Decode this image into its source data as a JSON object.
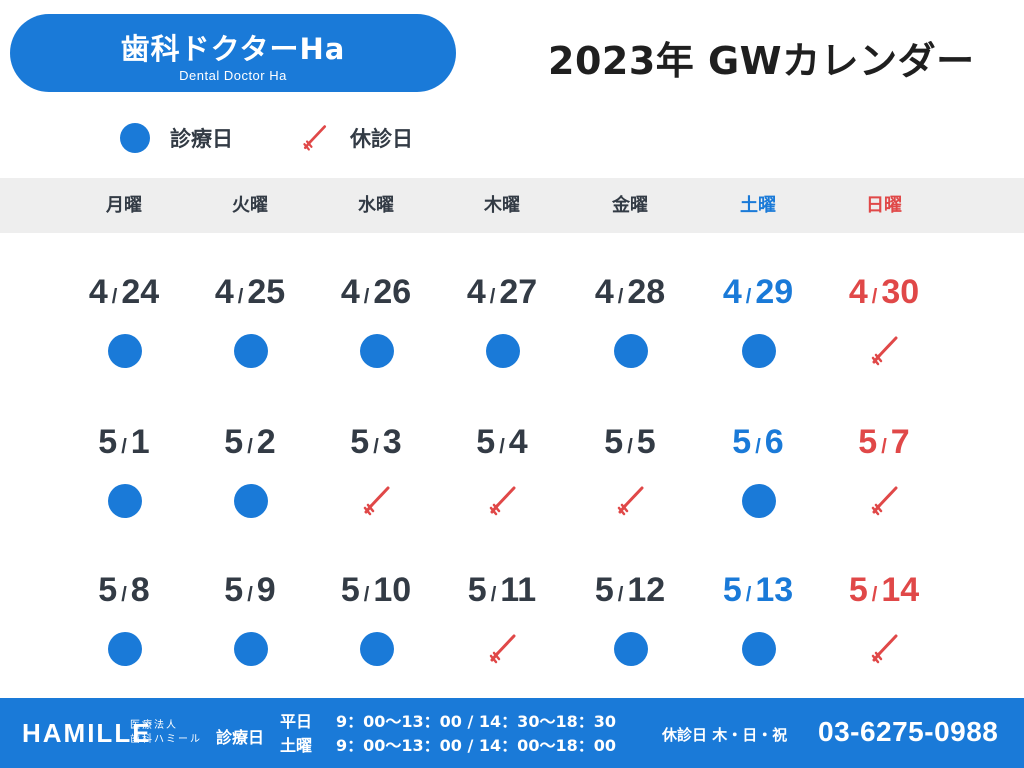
{
  "header": {
    "brand_title": "歯科ドクターHa",
    "brand_subtitle": "Dental Doctor Ha",
    "title": "2023年 GWカレンダー"
  },
  "legend": {
    "open_label": "診療日",
    "closed_label": "休診日"
  },
  "colors": {
    "accent": "#1a7ad8",
    "holiday": "#e04848",
    "text": "#333b45",
    "header_band": "#eeeeee"
  },
  "weekdays": [
    "月曜",
    "火曜",
    "水曜",
    "木曜",
    "金曜",
    "土曜",
    "日曜"
  ],
  "weeks": [
    [
      {
        "m": "4",
        "d": "24",
        "status": "open"
      },
      {
        "m": "4",
        "d": "25",
        "status": "open"
      },
      {
        "m": "4",
        "d": "26",
        "status": "open"
      },
      {
        "m": "4",
        "d": "27",
        "status": "open"
      },
      {
        "m": "4",
        "d": "28",
        "status": "open"
      },
      {
        "m": "4",
        "d": "29",
        "status": "open"
      },
      {
        "m": "4",
        "d": "30",
        "status": "closed"
      }
    ],
    [
      {
        "m": "5",
        "d": "1",
        "status": "open"
      },
      {
        "m": "5",
        "d": "2",
        "status": "open"
      },
      {
        "m": "5",
        "d": "3",
        "status": "closed"
      },
      {
        "m": "5",
        "d": "4",
        "status": "closed"
      },
      {
        "m": "5",
        "d": "5",
        "status": "closed"
      },
      {
        "m": "5",
        "d": "6",
        "status": "open"
      },
      {
        "m": "5",
        "d": "7",
        "status": "closed"
      }
    ],
    [
      {
        "m": "5",
        "d": "8",
        "status": "open"
      },
      {
        "m": "5",
        "d": "9",
        "status": "open"
      },
      {
        "m": "5",
        "d": "10",
        "status": "open"
      },
      {
        "m": "5",
        "d": "11",
        "status": "closed"
      },
      {
        "m": "5",
        "d": "12",
        "status": "open"
      },
      {
        "m": "5",
        "d": "13",
        "status": "open"
      },
      {
        "m": "5",
        "d": "14",
        "status": "closed"
      }
    ]
  ],
  "date_separator": "/",
  "footer": {
    "logo": "HAMILLE",
    "corp_line1": "医療法人",
    "corp_line2": "歯科ハミール",
    "hours_label": "診療日",
    "weekday_label": "平日",
    "weekday_hours": "9：00〜13：00 / 14：30〜18：30",
    "saturday_label": "土曜",
    "saturday_hours": "9：00〜13：00 / 14：00〜18：00",
    "closed_days": "休診日 木・日・祝",
    "phone": "03-6275-0988"
  }
}
